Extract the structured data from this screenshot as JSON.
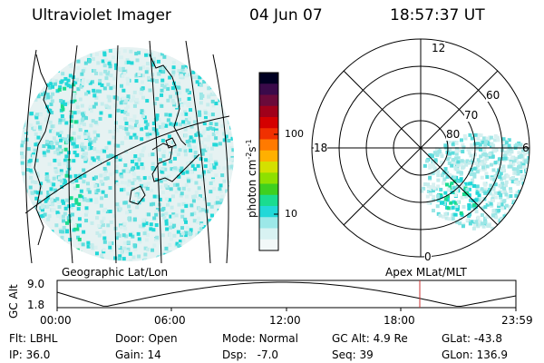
{
  "header": {
    "title": "Ultraviolet Imager",
    "date": "04 Jun 07",
    "time": "18:57:37 UT"
  },
  "geo_map": {
    "caption": "Geographic Lat/Lon"
  },
  "colorbar": {
    "unit_label": "photon cm",
    "unit_sup1": "-2",
    "unit_mid": "s",
    "unit_sup2": "-1",
    "tick_labels": [
      "100",
      "10"
    ],
    "colors": [
      "#000022",
      "#3a0a4a",
      "#6a0a3a",
      "#a0001a",
      "#d40000",
      "#f03000",
      "#ff7a00",
      "#ffb000",
      "#d4e000",
      "#8ee000",
      "#3ed020",
      "#1adc90",
      "#22d8d8",
      "#9ce8e8",
      "#d8f2f2",
      "#f2f8f8"
    ]
  },
  "polar_plot": {
    "caption": "Apex  MLat/MLT",
    "mlt_labels": [
      "12",
      "18",
      "6",
      "0"
    ],
    "lat_labels": [
      "60",
      "70",
      "80"
    ]
  },
  "timeline": {
    "ylabel": "GC Alt",
    "y_ticks": [
      "9.0",
      "1.8"
    ],
    "x_ticks": [
      "00:00",
      "06:00",
      "12:00",
      "18:00",
      "23:59"
    ],
    "current_time_marker": "18:57"
  },
  "footer": {
    "row1": [
      {
        "label": "Flt:",
        "value": "LBHL"
      },
      {
        "label": "Door:",
        "value": "Open"
      },
      {
        "label": "Mode:",
        "value": "Normal"
      },
      {
        "label": "GC Alt:",
        "value": "4.9 Re"
      },
      {
        "label": "GLat:",
        "value": "-43.8"
      }
    ],
    "row2": [
      {
        "label": "IP:",
        "value": "36.0"
      },
      {
        "label": "Gain:",
        "value": "14"
      },
      {
        "label": "Dsp:",
        "value": "-7.0"
      },
      {
        "label": "Seq:",
        "value": "39"
      },
      {
        "label": "GLon:",
        "value": "136.9"
      }
    ]
  }
}
